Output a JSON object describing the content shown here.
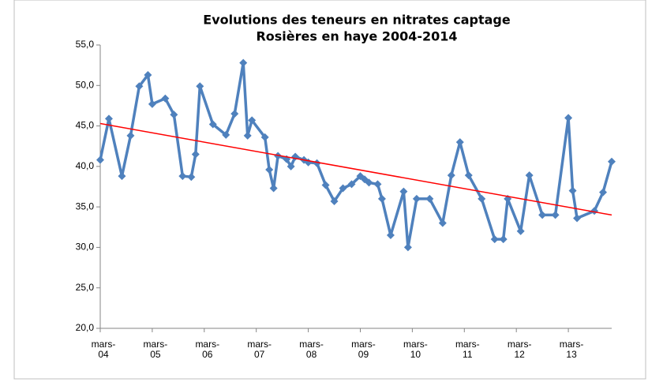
{
  "chart_data": {
    "type": "line",
    "title": [
      "Evolutions des teneurs en nitrates captage",
      "Rosières en haye 2004-2014"
    ],
    "x": [
      "2004-03",
      "2004-05",
      "2004-08",
      "2004-10",
      "2004-12",
      "2005-02",
      "2005-03",
      "2005-06",
      "2005-08",
      "2005-10",
      "2005-12",
      "2006-01",
      "2006-02",
      "2006-05",
      "2006-08",
      "2006-10",
      "2006-12",
      "2007-01",
      "2007-02",
      "2007-05",
      "2007-06",
      "2007-07",
      "2007-08",
      "2007-10",
      "2007-11",
      "2007-12",
      "2008-02",
      "2008-03",
      "2008-05",
      "2008-07",
      "2008-09",
      "2008-11",
      "2009-01",
      "2009-03",
      "2009-04",
      "2009-05",
      "2009-07",
      "2009-08",
      "2009-10",
      "2010-01",
      "2010-02",
      "2010-04",
      "2010-07",
      "2010-10",
      "2010-12",
      "2011-02",
      "2011-04",
      "2011-07",
      "2011-10",
      "2011-12",
      "2012-01",
      "2012-04",
      "2012-06",
      "2012-09",
      "2012-12",
      "2013-03",
      "2013-04",
      "2013-05",
      "2013-09",
      "2013-11",
      "2014-01"
    ],
    "values": [
      40.8,
      45.9,
      38.8,
      43.8,
      49.9,
      51.3,
      47.7,
      48.4,
      46.4,
      38.8,
      38.7,
      41.5,
      49.9,
      45.2,
      43.9,
      46.5,
      52.8,
      43.8,
      45.7,
      43.6,
      39.6,
      37.3,
      41.3,
      40.9,
      40.0,
      41.2,
      40.8,
      40.5,
      40.4,
      37.7,
      35.7,
      37.3,
      37.8,
      38.8,
      38.4,
      38.0,
      37.8,
      36.0,
      31.5,
      36.9,
      30.0,
      36.0,
      36.0,
      33.0,
      38.9,
      43.0,
      38.9,
      36.0,
      31.0,
      31.0,
      36.0,
      32.0,
      38.9,
      34.0,
      34.0,
      46.0,
      37.0,
      33.6,
      34.5,
      36.8,
      40.6
    ],
    "color": "#4f81bd",
    "trendline": {
      "x": [
        "2004-03",
        "2014-01"
      ],
      "values": [
        45.3,
        34.0
      ],
      "color": "#ff0000"
    },
    "xlim": [
      "2004-03",
      "2014-01"
    ],
    "xticks": [
      {
        "value": "2004-03",
        "label": "mars-04"
      },
      {
        "value": "2005-03",
        "label": "mars-05"
      },
      {
        "value": "2006-03",
        "label": "mars-06"
      },
      {
        "value": "2007-03",
        "label": "mars-07"
      },
      {
        "value": "2008-03",
        "label": "mars-08"
      },
      {
        "value": "2009-03",
        "label": "mars-09"
      },
      {
        "value": "2010-03",
        "label": "mars-10"
      },
      {
        "value": "2011-03",
        "label": "mars-11"
      },
      {
        "value": "2012-03",
        "label": "mars-12"
      },
      {
        "value": "2013-03",
        "label": "mars-13"
      }
    ],
    "ylim": [
      20,
      55
    ],
    "yticks": [
      {
        "value": 20,
        "label": "20,0"
      },
      {
        "value": 25,
        "label": "25,0"
      },
      {
        "value": 30,
        "label": "30,0"
      },
      {
        "value": 35,
        "label": "35,0"
      },
      {
        "value": 40,
        "label": "40,0"
      },
      {
        "value": 45,
        "label": "45,0"
      },
      {
        "value": 50,
        "label": "50,0"
      },
      {
        "value": 55,
        "label": "55,0"
      }
    ],
    "grid": false
  }
}
